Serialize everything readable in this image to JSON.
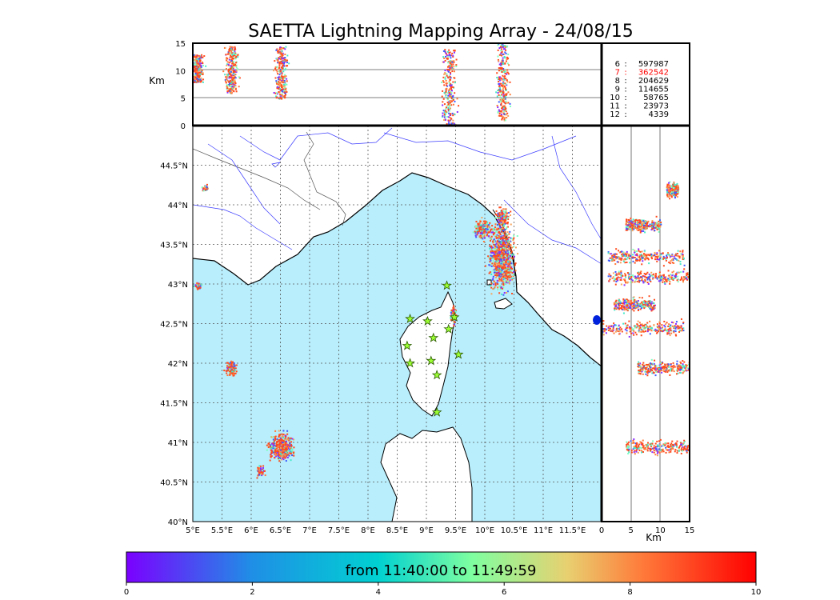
{
  "chart_data": {
    "type": "scatter",
    "title": "SAETTA Lightning Mapping Array - 24/08/15",
    "map": {
      "lon_range": [
        5.0,
        12.0
      ],
      "lat_range": [
        40.0,
        45.0
      ],
      "x_ticks": [
        "5°E",
        "5.5°E",
        "6°E",
        "6.5°E",
        "7°E",
        "7.5°E",
        "8°E",
        "8.5°E",
        "9°E",
        "9.5°E",
        "10°E",
        "10.5°E",
        "11°E",
        "11.5°E"
      ],
      "y_ticks": [
        "40°N",
        "40.5°N",
        "41°N",
        "41.5°N",
        "42°N",
        "42.5°N",
        "43°N",
        "43.5°N",
        "44°N",
        "44.5°N"
      ],
      "grid": "dotted",
      "sea_color": "#b9eefc",
      "stations": [
        {
          "lon": 9.35,
          "lat": 42.98
        },
        {
          "lon": 8.72,
          "lat": 42.56
        },
        {
          "lon": 9.02,
          "lat": 42.53
        },
        {
          "lon": 9.48,
          "lat": 42.58
        },
        {
          "lon": 9.38,
          "lat": 42.43
        },
        {
          "lon": 9.12,
          "lat": 42.32
        },
        {
          "lon": 8.67,
          "lat": 42.22
        },
        {
          "lon": 9.55,
          "lat": 42.11
        },
        {
          "lon": 8.72,
          "lat": 42.0
        },
        {
          "lon": 9.08,
          "lat": 42.03
        },
        {
          "lon": 9.18,
          "lat": 41.85
        },
        {
          "lon": 9.18,
          "lat": 41.38
        }
      ],
      "clusters": [
        {
          "lon": 10.28,
          "lat": 43.35,
          "dlon": 0.28,
          "dlat": 0.55,
          "n": 900
        },
        {
          "lon": 9.95,
          "lat": 43.7,
          "dlon": 0.2,
          "dlat": 0.15,
          "n": 200
        },
        {
          "lon": 10.3,
          "lat": 43.85,
          "dlon": 0.15,
          "dlat": 0.15,
          "n": 150
        },
        {
          "lon": 9.45,
          "lat": 42.62,
          "dlon": 0.05,
          "dlat": 0.15,
          "n": 120
        },
        {
          "lon": 6.5,
          "lat": 40.95,
          "dlon": 0.28,
          "dlat": 0.22,
          "n": 420
        },
        {
          "lon": 6.15,
          "lat": 40.65,
          "dlon": 0.1,
          "dlat": 0.1,
          "n": 60
        },
        {
          "lon": 5.65,
          "lat": 41.95,
          "dlon": 0.12,
          "dlat": 0.12,
          "n": 120
        },
        {
          "lon": 5.07,
          "lat": 42.98,
          "dlon": 0.07,
          "dlat": 0.06,
          "n": 60
        },
        {
          "lon": 5.2,
          "lat": 44.22,
          "dlon": 0.08,
          "dlat": 0.05,
          "n": 30
        }
      ]
    },
    "alt_lon": {
      "ylabel": "Km",
      "y_range": [
        0,
        15
      ],
      "y_ticks": [
        "0",
        "5",
        "10",
        "15"
      ],
      "bands": [
        {
          "lon": 5.06,
          "alt_min": 8,
          "alt_max": 13
        },
        {
          "lon": 5.65,
          "alt_min": 6,
          "alt_max": 14.5
        },
        {
          "lon": 6.5,
          "alt_min": 5,
          "alt_max": 14.5
        },
        {
          "lon": 9.38,
          "alt_min": 0,
          "alt_max": 14
        },
        {
          "lon": 10.3,
          "alt_min": 1,
          "alt_max": 15
        }
      ]
    },
    "alt_lat": {
      "xlabel": "Km",
      "x_range": [
        0,
        15
      ],
      "x_ticks": [
        "0",
        "5",
        "10",
        "15"
      ],
      "bands": [
        {
          "lat": 43.1,
          "alt_min": 1,
          "alt_max": 15
        },
        {
          "lat": 43.35,
          "alt_min": 1,
          "alt_max": 14
        },
        {
          "lat": 43.75,
          "alt_min": 4,
          "alt_max": 10
        },
        {
          "lat": 42.75,
          "alt_min": 2,
          "alt_max": 9
        },
        {
          "lat": 42.45,
          "alt_min": 0,
          "alt_max": 14
        },
        {
          "lat": 41.95,
          "alt_min": 6,
          "alt_max": 15
        },
        {
          "lat": 40.95,
          "alt_min": 4,
          "alt_max": 15
        },
        {
          "lat": 44.2,
          "alt_min": 11,
          "alt_max": 13
        }
      ]
    },
    "station_counts": [
      {
        "station": "6",
        "count": "597987"
      },
      {
        "station": "7",
        "count": "362542",
        "highlight": true
      },
      {
        "station": "8",
        "count": "204629"
      },
      {
        "station": "9",
        "count": "114655"
      },
      {
        "station": "10",
        "count": "58765"
      },
      {
        "station": "11",
        "count": "23973"
      },
      {
        "station": "12",
        "count": "4339"
      }
    ],
    "colorbar": {
      "caption": "from 11:40:00 to 11:49:59",
      "range": [
        0,
        10
      ],
      "ticks": [
        "0",
        "2",
        "4",
        "6",
        "8",
        "10"
      ],
      "colors": [
        "#7b00ff",
        "#1f8fe6",
        "#00d1d1",
        "#7fffa0",
        "#f4c260",
        "#ff6a3a",
        "#ff0000"
      ]
    }
  }
}
